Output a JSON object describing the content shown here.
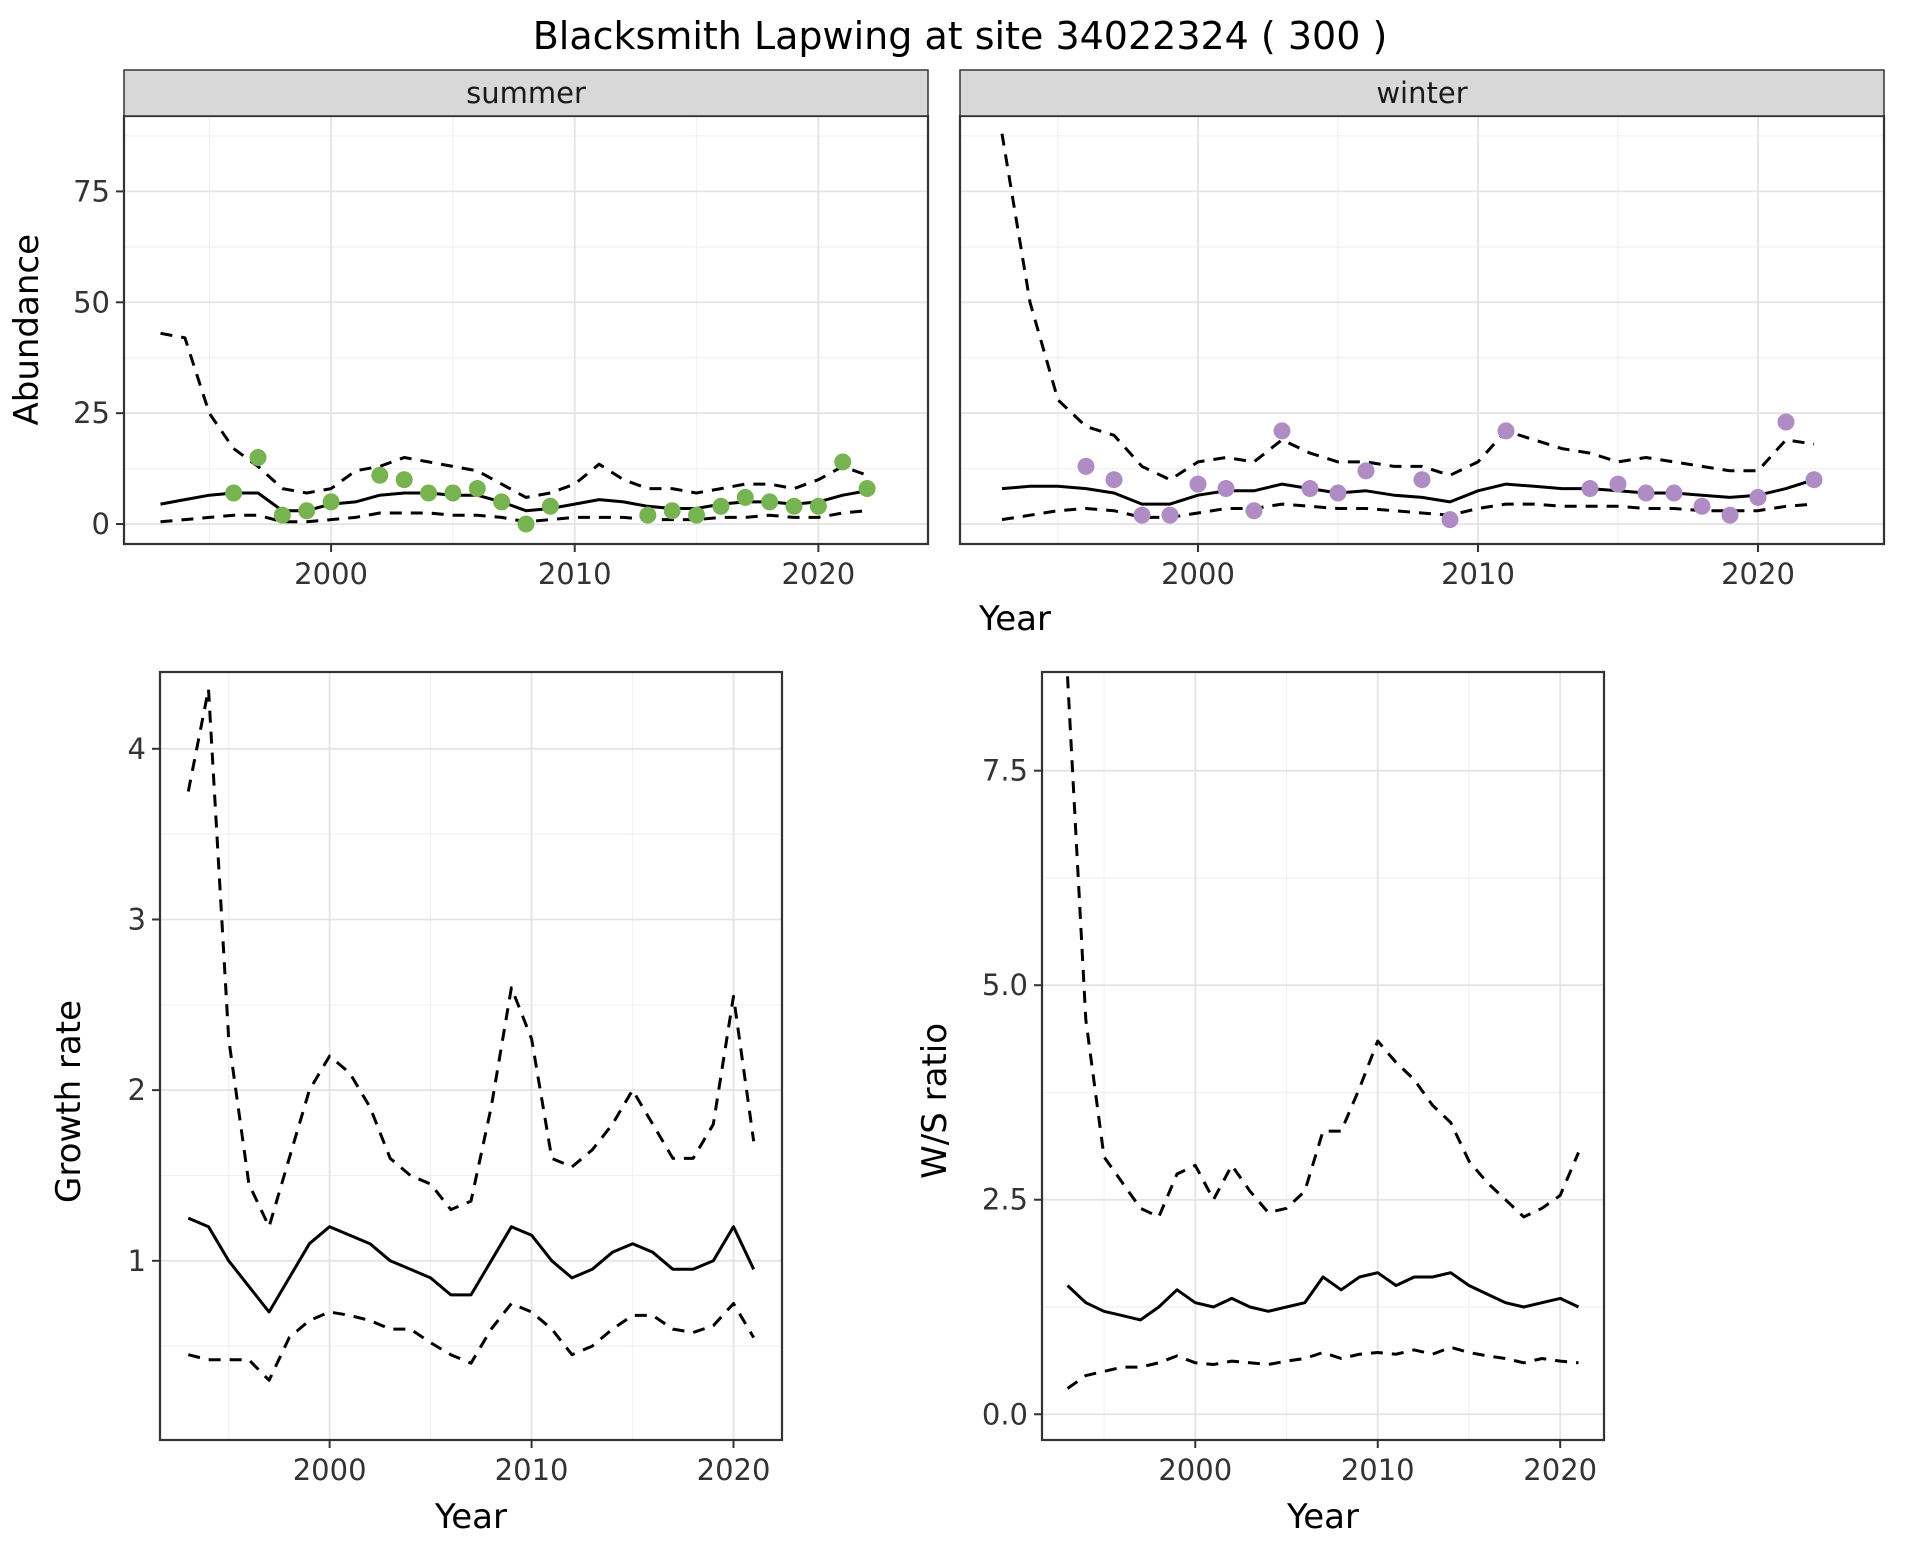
{
  "page": {
    "title": "Blacksmith Lapwing at site 34022324 ( 300 )"
  },
  "labels": {
    "abundance": "Abundance",
    "year": "Year",
    "growth": "Growth rate",
    "ws": "W/S ratio"
  },
  "colors": {
    "summer_points": "#77b350",
    "winter_points": "#b08cc4",
    "line": "#000000",
    "strip_bg": "#d8d8d8",
    "panel_border": "#333333"
  },
  "chart_data": [
    {
      "id": "abundance-summer",
      "type": "line",
      "facet_label": "summer",
      "xlabel": "Year",
      "ylabel": "Abundance",
      "xlim": [
        1991.5,
        2024.5
      ],
      "ylim": [
        -4.5,
        92
      ],
      "xticks": [
        {
          "v": 2000,
          "label": "2000"
        },
        {
          "v": 2010,
          "label": "2010"
        },
        {
          "v": 2020,
          "label": "2020"
        }
      ],
      "yticks": [
        {
          "v": 0,
          "label": "0"
        },
        {
          "v": 25,
          "label": "25"
        },
        {
          "v": 50,
          "label": "50"
        },
        {
          "v": 75,
          "label": "75"
        }
      ],
      "grid": true,
      "legend": "none",
      "line_color": "#000000",
      "point_color": "#77b350",
      "years": [
        1993,
        1994,
        1995,
        1996,
        1997,
        1998,
        1999,
        2000,
        2001,
        2002,
        2003,
        2004,
        2005,
        2006,
        2007,
        2008,
        2009,
        2010,
        2011,
        2012,
        2013,
        2014,
        2015,
        2016,
        2017,
        2018,
        2019,
        2020,
        2021,
        2022
      ],
      "series": [
        {
          "name": "median",
          "style": "solid",
          "y": [
            4.5,
            5.5,
            6.5,
            7,
            7,
            3,
            3,
            4.5,
            5,
            6.5,
            7,
            7,
            6.5,
            6.5,
            5,
            3,
            3.5,
            4.5,
            5.5,
            5,
            4,
            3.5,
            3.5,
            4.5,
            5,
            5,
            4.5,
            5,
            6.5,
            7.5
          ]
        },
        {
          "name": "upper-ci",
          "style": "dashed",
          "y": [
            43,
            42,
            25,
            17,
            13,
            8,
            7,
            8,
            12,
            13,
            15,
            14,
            13,
            12,
            9,
            6,
            7,
            9,
            13.5,
            10,
            8,
            8,
            7,
            8,
            9,
            9,
            8,
            10,
            13,
            11
          ]
        },
        {
          "name": "lower-ci",
          "style": "dashed",
          "y": [
            0.5,
            1,
            1.5,
            2,
            2,
            0.5,
            0.5,
            1,
            1.5,
            2.5,
            2.5,
            2.5,
            2,
            2,
            1.5,
            0.5,
            1,
            1.5,
            1.5,
            1.5,
            1,
            1,
            1,
            1.5,
            1.5,
            2,
            1.5,
            1.5,
            2.5,
            3
          ]
        }
      ],
      "points": {
        "x": [
          1996,
          1997,
          1998,
          1999,
          2000,
          2002,
          2003,
          2004,
          2005,
          2006,
          2007,
          2008,
          2009,
          2013,
          2014,
          2015,
          2016,
          2017,
          2018,
          2019,
          2020,
          2021,
          2022
        ],
        "y": [
          7,
          15,
          2,
          3,
          5,
          11,
          10,
          7,
          7,
          8,
          5,
          0,
          4,
          2,
          3,
          2,
          4,
          6,
          5,
          4,
          4,
          14,
          8
        ]
      }
    },
    {
      "id": "abundance-winter",
      "type": "line",
      "facet_label": "winter",
      "xlabel": "Year",
      "ylabel": "Abundance",
      "xlim": [
        1991.5,
        2024.5
      ],
      "ylim": [
        -4.5,
        92
      ],
      "xticks": [
        {
          "v": 2000,
          "label": "2000"
        },
        {
          "v": 2010,
          "label": "2010"
        },
        {
          "v": 2020,
          "label": "2020"
        }
      ],
      "yticks": [
        {
          "v": 0,
          "label": "0"
        },
        {
          "v": 25,
          "label": "25"
        },
        {
          "v": 50,
          "label": "50"
        },
        {
          "v": 75,
          "label": "75"
        }
      ],
      "grid": true,
      "legend": "none",
      "line_color": "#000000",
      "point_color": "#b08cc4",
      "years": [
        1993,
        1994,
        1995,
        1996,
        1997,
        1998,
        1999,
        2000,
        2001,
        2002,
        2003,
        2004,
        2005,
        2006,
        2007,
        2008,
        2009,
        2010,
        2011,
        2012,
        2013,
        2014,
        2015,
        2016,
        2017,
        2018,
        2019,
        2020,
        2021,
        2022
      ],
      "series": [
        {
          "name": "median",
          "style": "solid",
          "y": [
            8,
            8.5,
            8.5,
            8,
            7,
            4.5,
            4.5,
            6.5,
            7.5,
            7.5,
            9,
            8,
            7,
            7.5,
            6.5,
            6,
            5,
            7.5,
            9,
            8.5,
            8,
            8,
            7.5,
            7,
            7,
            6.5,
            6,
            6.5,
            8,
            10
          ]
        },
        {
          "name": "upper-ci",
          "style": "dashed",
          "y": [
            88,
            50,
            28,
            22,
            20,
            13,
            10,
            14,
            15,
            14,
            19,
            16,
            14,
            14,
            13,
            13,
            11,
            14,
            21,
            19,
            17,
            16,
            14,
            15,
            14,
            13,
            12,
            12,
            19,
            18
          ]
        },
        {
          "name": "lower-ci",
          "style": "dashed",
          "y": [
            1,
            2,
            3,
            3.5,
            3,
            1.5,
            1.5,
            2.5,
            3.5,
            3.5,
            4.5,
            4,
            3.5,
            3.5,
            3,
            2.5,
            2,
            3.5,
            4.5,
            4.5,
            4,
            4,
            4,
            3.5,
            3.5,
            3,
            3,
            3,
            4,
            4.5
          ]
        }
      ],
      "points": {
        "x": [
          1996,
          1997,
          1998,
          1999,
          2000,
          2001,
          2002,
          2003,
          2004,
          2005,
          2006,
          2008,
          2009,
          2011,
          2014,
          2015,
          2016,
          2017,
          2018,
          2019,
          2020,
          2021,
          2022
        ],
        "y": [
          13,
          10,
          2,
          2,
          9,
          8,
          3,
          21,
          8,
          7,
          12,
          10,
          1,
          21,
          8,
          9,
          7,
          7,
          4,
          2,
          6,
          23,
          10
        ]
      }
    },
    {
      "id": "growth",
      "type": "line",
      "facet_label": "",
      "xlabel": "Year",
      "ylabel": "Growth rate",
      "xlim": [
        1991.6,
        2022.4
      ],
      "ylim": [
        -0.05,
        4.45
      ],
      "xticks": [
        {
          "v": 2000,
          "label": "2000"
        },
        {
          "v": 2010,
          "label": "2010"
        },
        {
          "v": 2020,
          "label": "2020"
        }
      ],
      "yticks": [
        {
          "v": 1,
          "label": "1"
        },
        {
          "v": 2,
          "label": "2"
        },
        {
          "v": 3,
          "label": "3"
        },
        {
          "v": 4,
          "label": "4"
        }
      ],
      "grid": true,
      "legend": "none",
      "line_color": "#000000",
      "point_color": "",
      "years": [
        1993,
        1994,
        1995,
        1996,
        1997,
        1998,
        1999,
        2000,
        2001,
        2002,
        2003,
        2004,
        2005,
        2006,
        2007,
        2008,
        2009,
        2010,
        2011,
        2012,
        2013,
        2014,
        2015,
        2016,
        2017,
        2018,
        2019,
        2020,
        2021
      ],
      "series": [
        {
          "name": "median",
          "style": "solid",
          "y": [
            1.25,
            1.2,
            1.0,
            0.85,
            0.7,
            0.9,
            1.1,
            1.2,
            1.15,
            1.1,
            1.0,
            0.95,
            0.9,
            0.8,
            0.8,
            1.0,
            1.2,
            1.15,
            1.0,
            0.9,
            0.95,
            1.05,
            1.1,
            1.05,
            0.95,
            0.95,
            1.0,
            1.2,
            0.95
          ]
        },
        {
          "name": "upper-ci",
          "style": "dashed",
          "y": [
            3.75,
            4.35,
            2.3,
            1.45,
            1.2,
            1.6,
            2.0,
            2.2,
            2.1,
            1.9,
            1.6,
            1.5,
            1.45,
            1.3,
            1.35,
            1.9,
            2.6,
            2.3,
            1.6,
            1.55,
            1.65,
            1.8,
            2.0,
            1.8,
            1.6,
            1.6,
            1.8,
            2.55,
            1.7
          ]
        },
        {
          "name": "lower-ci",
          "style": "dashed",
          "y": [
            0.45,
            0.42,
            0.42,
            0.42,
            0.3,
            0.55,
            0.65,
            0.7,
            0.68,
            0.65,
            0.6,
            0.6,
            0.52,
            0.45,
            0.4,
            0.6,
            0.75,
            0.7,
            0.6,
            0.45,
            0.5,
            0.6,
            0.68,
            0.68,
            0.6,
            0.58,
            0.62,
            0.75,
            0.55
          ]
        }
      ],
      "points": null
    },
    {
      "id": "ws",
      "type": "line",
      "facet_label": "",
      "xlabel": "Year",
      "ylabel": "W/S ratio",
      "xlim": [
        1991.6,
        2022.4
      ],
      "ylim": [
        -0.3,
        8.65
      ],
      "xticks": [
        {
          "v": 2000,
          "label": "2000"
        },
        {
          "v": 2010,
          "label": "2010"
        },
        {
          "v": 2020,
          "label": "2020"
        }
      ],
      "yticks": [
        {
          "v": 0,
          "label": "0.0"
        },
        {
          "v": 2.5,
          "label": "2.5"
        },
        {
          "v": 5,
          "label": "5.0"
        },
        {
          "v": 7.5,
          "label": "7.5"
        }
      ],
      "grid": true,
      "legend": "none",
      "line_color": "#000000",
      "point_color": "",
      "years": [
        1993,
        1994,
        1995,
        1996,
        1997,
        1998,
        1999,
        2000,
        2001,
        2002,
        2003,
        2004,
        2005,
        2006,
        2007,
        2008,
        2009,
        2010,
        2011,
        2012,
        2013,
        2014,
        2015,
        2016,
        2017,
        2018,
        2019,
        2020,
        2021
      ],
      "series": [
        {
          "name": "median",
          "style": "solid",
          "y": [
            1.5,
            1.3,
            1.2,
            1.15,
            1.1,
            1.25,
            1.45,
            1.3,
            1.25,
            1.35,
            1.25,
            1.2,
            1.25,
            1.3,
            1.6,
            1.45,
            1.6,
            1.65,
            1.5,
            1.6,
            1.6,
            1.65,
            1.5,
            1.4,
            1.3,
            1.25,
            1.3,
            1.35,
            1.25
          ]
        },
        {
          "name": "upper-ci",
          "style": "dashed",
          "y": [
            8.6,
            4.6,
            3.0,
            2.7,
            2.4,
            2.3,
            2.8,
            2.9,
            2.5,
            2.9,
            2.6,
            2.35,
            2.4,
            2.6,
            3.3,
            3.3,
            3.8,
            4.35,
            4.1,
            3.9,
            3.6,
            3.4,
            2.95,
            2.7,
            2.5,
            2.3,
            2.4,
            2.55,
            3.05
          ]
        },
        {
          "name": "lower-ci",
          "style": "dashed",
          "y": [
            0.3,
            0.45,
            0.5,
            0.55,
            0.55,
            0.6,
            0.68,
            0.6,
            0.58,
            0.62,
            0.6,
            0.58,
            0.62,
            0.65,
            0.72,
            0.65,
            0.7,
            0.72,
            0.7,
            0.75,
            0.7,
            0.78,
            0.72,
            0.68,
            0.65,
            0.6,
            0.65,
            0.62,
            0.6
          ]
        }
      ],
      "points": null
    }
  ]
}
